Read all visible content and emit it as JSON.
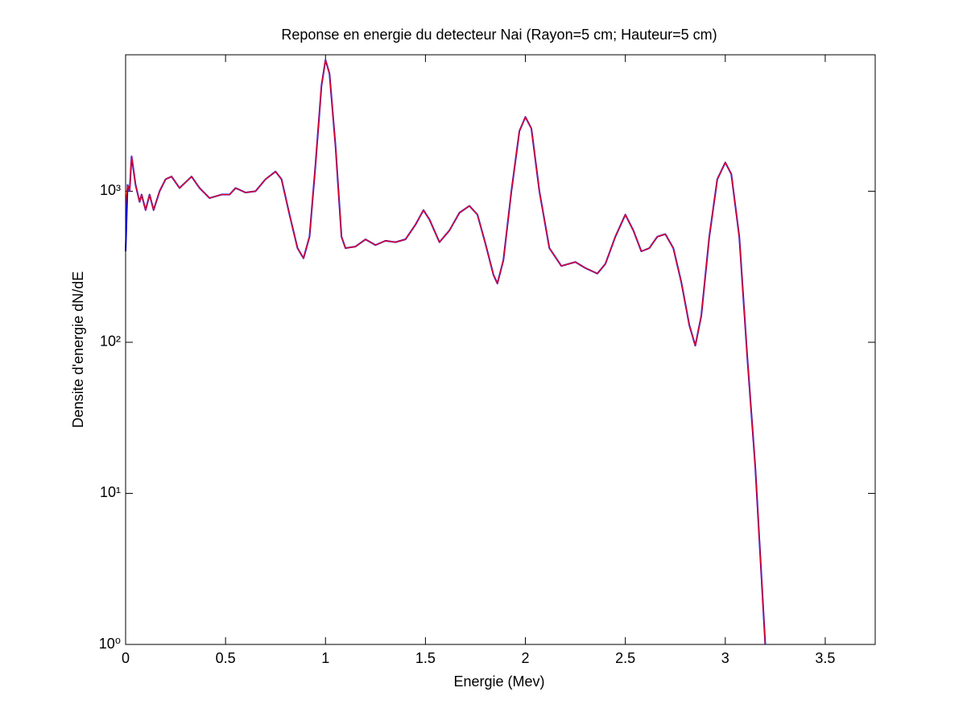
{
  "chart_data": {
    "type": "line",
    "title": "Reponse en energie du detecteur Nai (Rayon=5 cm; Hauteur=5 cm)",
    "x_label": "Energie (Mev)",
    "y_label": "Densite d'energie dN/dE",
    "log_y": true,
    "grid": false,
    "xlim": [
      0,
      3.75
    ],
    "xticks": [
      0,
      0.5,
      1,
      1.5,
      2,
      2.5,
      3,
      3.5
    ],
    "ylim": [
      1,
      8000
    ],
    "yticks": [
      {
        "value": 1,
        "label": "10⁰"
      },
      {
        "value": 10,
        "label": "10¹"
      },
      {
        "value": 100,
        "label": "10²"
      },
      {
        "value": 1000,
        "label": "10³"
      }
    ],
    "x": [
      0,
      0.01,
      0.02,
      0.03,
      0.05,
      0.07,
      0.08,
      0.1,
      0.12,
      0.14,
      0.17,
      0.2,
      0.23,
      0.27,
      0.33,
      0.37,
      0.42,
      0.48,
      0.52,
      0.55,
      0.6,
      0.65,
      0.7,
      0.75,
      0.78,
      0.82,
      0.86,
      0.89,
      0.92,
      0.95,
      0.98,
      1.0,
      1.02,
      1.05,
      1.08,
      1.1,
      1.15,
      1.2,
      1.25,
      1.3,
      1.35,
      1.4,
      1.45,
      1.49,
      1.52,
      1.57,
      1.62,
      1.67,
      1.72,
      1.76,
      1.8,
      1.84,
      1.86,
      1.89,
      1.93,
      1.97,
      2.0,
      2.03,
      2.07,
      2.12,
      2.18,
      2.25,
      2.3,
      2.36,
      2.4,
      2.45,
      2.5,
      2.54,
      2.58,
      2.62,
      2.66,
      2.7,
      2.74,
      2.78,
      2.82,
      2.85,
      2.88,
      2.92,
      2.96,
      3.0,
      3.03,
      3.07,
      3.11,
      3.15,
      3.2
    ],
    "series": [
      {
        "color": "#0000ff",
        "values": [
          400,
          1100,
          1000,
          1700,
          1100,
          850,
          950,
          750,
          950,
          750,
          1000,
          1200,
          1250,
          1050,
          1250,
          1050,
          900,
          950,
          950,
          1050,
          980,
          1000,
          1200,
          1350,
          1200,
          700,
          420,
          360,
          500,
          1500,
          5000,
          7400,
          6000,
          2000,
          500,
          420,
          430,
          480,
          440,
          470,
          460,
          480,
          600,
          750,
          650,
          460,
          550,
          720,
          800,
          700,
          450,
          280,
          245,
          350,
          1000,
          2500,
          3100,
          2600,
          1000,
          420,
          320,
          340,
          310,
          285,
          330,
          500,
          700,
          550,
          400,
          420,
          500,
          520,
          420,
          250,
          130,
          95,
          150,
          500,
          1200,
          1550,
          1300,
          500,
          80,
          15,
          1
        ]
      },
      {
        "color": "#ff0000",
        "values": [
          800,
          1100,
          1000,
          1700,
          1100,
          850,
          950,
          750,
          950,
          750,
          1000,
          1200,
          1250,
          1050,
          1250,
          1050,
          900,
          950,
          950,
          1050,
          980,
          1000,
          1200,
          1350,
          1200,
          700,
          420,
          360,
          500,
          1500,
          5000,
          7400,
          6000,
          2000,
          500,
          420,
          430,
          480,
          440,
          470,
          460,
          480,
          600,
          750,
          650,
          460,
          550,
          720,
          800,
          700,
          450,
          280,
          245,
          350,
          1000,
          2500,
          3100,
          2600,
          1000,
          420,
          320,
          340,
          310,
          285,
          330,
          500,
          700,
          550,
          400,
          420,
          500,
          520,
          420,
          250,
          130,
          95,
          150,
          500,
          1200,
          1550,
          1300,
          500,
          80,
          15,
          1
        ]
      }
    ]
  }
}
